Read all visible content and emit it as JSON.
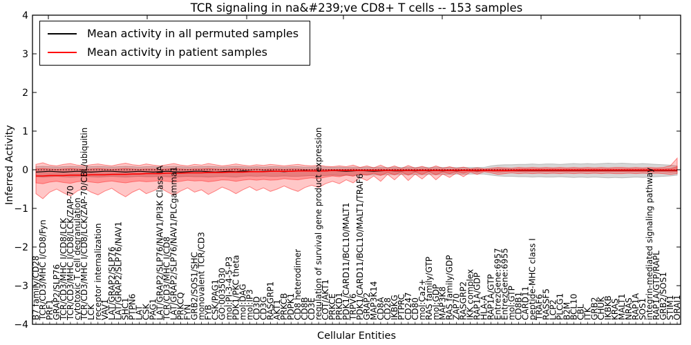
{
  "figure": {
    "title": "TCR signaling in na&#239;ve CD8+ T cells -- 153 samples",
    "xlabel": "Cellular Entities",
    "ylabel": "Inferred Activity",
    "legend": [
      {
        "label": "Mean activity in all permuted samples",
        "color": "#000000"
      },
      {
        "label": "Mean activity in patient samples",
        "color": "#ff0000"
      }
    ]
  },
  "chart_data": {
    "type": "line",
    "title": "TCR signaling in na&#239;ve CD8+ T cells -- 153 samples",
    "xlabel": "Cellular Entities",
    "ylabel": "Inferred Activity",
    "ylim": [
      -4,
      4
    ],
    "yticks": [
      4,
      3,
      2,
      1,
      0,
      -1,
      -2,
      -3,
      -4
    ],
    "grid": false,
    "legend_position": "upper left",
    "baseline": 0,
    "categories": [
      "B7 family/CD28",
      "TCR/CD3/MHC I/CD8/Fyn",
      "PRF1",
      "GRAP2/SLP76",
      "TCR/CD3/MHC I/CD8/LCK",
      "TCR/CD3/MHC I/CD8/LCK/ZAP-70",
      "cytotoxic T cell degranulation",
      "TCR/CD3/MHC I/CD8/LCK/ZAP-70/CBL/ubiquitin",
      "LCK",
      "receptor internalization",
      "VAV1",
      "LAT/GRAP2/SLP76",
      "LAT/GRAP2/SLP76/NAV1",
      "SHC1",
      "PTPN6",
      "LAT",
      "CSK",
      "PAG1",
      "LAT/GRAP2/SLP76/NAV1/PI3K Class IA",
      "TCR/CD3/MHC I/CD8",
      "LAT/GRAP2/SLP76/NAV1/PLCgamma1",
      "PRKCQ",
      "FYN",
      "GRB2/SOS1/SHC",
      "monovalent TCR/CD3",
      "FYB",
      "CSK/PAG1",
      "GO:0035030",
      "mol:PI-3-4-5-P3",
      "PDK1/PKC theta",
      "mol:DAG",
      "mol:IP3",
      "CD3D",
      "CD3G",
      "RASGRP1",
      "AKT1",
      "PRKCB",
      "PDPK1",
      "CD8 heterodimer",
      "CD8B",
      "CD3E",
      "regulation of survival gene product expression",
      "COT/AKT1",
      "PRKCE",
      "PRKD1",
      "PDK1/CARD11/BCL10/MALT1",
      "TRPV6",
      "PDK1/CARD11/BCL10/MALT1/TRAF6",
      "GRAP2",
      "MAP3K14",
      "CD8A",
      "CD28",
      "IKBKG",
      "PTPRC",
      "CD247",
      "CD80",
      "mol:Ca2+",
      "RAS family/GTP",
      "mol:GDP",
      "MAP3K8",
      "RAS family/GDP",
      "ZAP70",
      "RASGRP2",
      "IKK complex",
      "RAP1A/GDP",
      "HLA-A",
      "RAP1A/GTP",
      "EntrezGene:6957",
      "EntrezGene:6955",
      "mol:GTP",
      "CD8B1",
      "CARD11",
      "peptide-MHC class I",
      "TRAF6",
      "RASSF5",
      "LCP2",
      "PLCG1",
      "B2M",
      "BCL10",
      "CBL",
      "ITK",
      "GRB2",
      "CHUK",
      "IKBKB",
      "KRAS",
      "MALT1",
      "NRAS",
      "RAP1A",
      "SOS1",
      "integrin-mediated signaling pathway",
      "RAP1A/GTP/RAPL",
      "GRB2/SOS1",
      "STIM1",
      "ORAI1"
    ],
    "series": [
      {
        "name": "Mean activity in all permuted samples",
        "color": "#000000",
        "style": "solid",
        "values": [
          -0.06,
          -0.05,
          -0.04,
          -0.05,
          -0.06,
          -0.05,
          -0.04,
          -0.05,
          -0.06,
          -0.05,
          -0.04,
          -0.04,
          -0.05,
          -0.06,
          -0.05,
          -0.04,
          -0.05,
          -0.06,
          -0.05,
          -0.04,
          -0.05,
          -0.06,
          -0.05,
          -0.04,
          -0.04,
          -0.05,
          -0.06,
          -0.05,
          -0.04,
          -0.05,
          -0.03,
          -0.04,
          -0.05,
          -0.04,
          -0.03,
          -0.04,
          -0.05,
          -0.04,
          -0.03,
          -0.02,
          -0.03,
          -0.04,
          -0.03,
          -0.02,
          -0.03,
          -0.04,
          -0.03,
          -0.02,
          -0.03,
          -0.04,
          -0.03,
          -0.02,
          -0.03,
          -0.03,
          -0.02,
          -0.03,
          -0.02,
          -0.03,
          -0.02,
          -0.03,
          -0.02,
          -0.03,
          -0.02,
          -0.02,
          -0.03,
          -0.02,
          -0.02,
          -0.02,
          -0.02,
          -0.02,
          -0.02,
          -0.02,
          -0.02,
          -0.02,
          -0.02,
          -0.02,
          -0.02,
          -0.02,
          -0.02,
          -0.02,
          -0.02,
          -0.02,
          -0.02,
          -0.02,
          -0.02,
          -0.02,
          -0.02,
          -0.02,
          -0.02,
          -0.02,
          -0.02,
          -0.02,
          -0.02,
          -0.02
        ]
      },
      {
        "name": "Mean activity in patient samples",
        "color": "#ff0000",
        "style": "solid",
        "values": [
          -0.16,
          -0.16,
          -0.15,
          -0.15,
          -0.15,
          -0.14,
          -0.14,
          -0.14,
          -0.13,
          -0.13,
          -0.13,
          -0.12,
          -0.12,
          -0.12,
          -0.11,
          -0.11,
          -0.1,
          -0.1,
          -0.1,
          -0.09,
          -0.09,
          -0.09,
          -0.08,
          -0.08,
          -0.08,
          -0.07,
          -0.07,
          -0.07,
          -0.06,
          -0.06,
          -0.06,
          -0.05,
          -0.05,
          -0.05,
          -0.04,
          -0.04,
          -0.04,
          -0.04,
          -0.03,
          -0.03,
          -0.03,
          -0.03,
          -0.03,
          -0.02,
          -0.02,
          -0.02,
          -0.02,
          -0.02,
          -0.02,
          -0.02,
          -0.02,
          -0.02,
          -0.02,
          -0.02,
          -0.02,
          -0.02,
          -0.02,
          -0.02,
          -0.02,
          -0.02,
          -0.02,
          -0.02,
          -0.02,
          -0.02,
          -0.02,
          -0.02,
          -0.02,
          -0.02,
          -0.02,
          -0.02,
          -0.01,
          -0.01,
          -0.01,
          -0.01,
          -0.01,
          -0.01,
          -0.01,
          -0.01,
          -0.01,
          -0.01,
          -0.01,
          -0.01,
          -0.01,
          -0.01,
          -0.01,
          -0.01,
          -0.01,
          -0.01,
          -0.01,
          -0.01,
          -0.01,
          -0.01,
          -0.01,
          -0.01
        ]
      }
    ],
    "bands": [
      {
        "name": "permuted-samples-range",
        "color": "#8c8c8c",
        "fill_opacity": 0.35,
        "edge_opacity": 0.5,
        "upper": [
          0.08,
          0.09,
          0.08,
          0.07,
          0.08,
          0.09,
          0.08,
          0.07,
          0.08,
          0.09,
          0.08,
          0.07,
          0.08,
          0.09,
          0.08,
          0.07,
          0.08,
          0.08,
          0.07,
          0.08,
          0.09,
          0.08,
          0.07,
          0.08,
          0.08,
          0.09,
          0.08,
          0.07,
          0.08,
          0.09,
          0.08,
          0.07,
          0.08,
          0.07,
          0.08,
          0.08,
          0.07,
          0.08,
          0.08,
          0.07,
          0.07,
          0.08,
          0.07,
          0.06,
          0.07,
          0.06,
          0.07,
          0.06,
          0.07,
          0.06,
          0.07,
          0.06,
          0.07,
          0.06,
          0.07,
          0.06,
          0.07,
          0.06,
          0.07,
          0.06,
          0.06,
          0.06,
          0.06,
          0.06,
          0.06,
          0.06,
          0.1,
          0.12,
          0.13,
          0.13,
          0.14,
          0.14,
          0.15,
          0.14,
          0.15,
          0.15,
          0.14,
          0.15,
          0.16,
          0.15,
          0.16,
          0.15,
          0.16,
          0.17,
          0.16,
          0.17,
          0.16,
          0.15,
          0.16,
          0.15,
          0.14,
          0.13,
          0.12,
          0.1
        ],
        "lower": [
          -0.18,
          -0.19,
          -0.18,
          -0.17,
          -0.18,
          -0.19,
          -0.18,
          -0.17,
          -0.18,
          -0.19,
          -0.18,
          -0.17,
          -0.18,
          -0.19,
          -0.18,
          -0.17,
          -0.18,
          -0.18,
          -0.17,
          -0.18,
          -0.19,
          -0.18,
          -0.17,
          -0.18,
          -0.18,
          -0.19,
          -0.18,
          -0.17,
          -0.18,
          -0.19,
          -0.17,
          -0.16,
          -0.17,
          -0.16,
          -0.17,
          -0.17,
          -0.16,
          -0.17,
          -0.17,
          -0.16,
          -0.15,
          -0.16,
          -0.15,
          -0.14,
          -0.15,
          -0.14,
          -0.15,
          -0.13,
          -0.14,
          -0.13,
          -0.14,
          -0.12,
          -0.13,
          -0.12,
          -0.13,
          -0.12,
          -0.13,
          -0.12,
          -0.13,
          -0.12,
          -0.12,
          -0.11,
          -0.12,
          -0.11,
          -0.11,
          -0.11,
          -0.14,
          -0.16,
          -0.17,
          -0.17,
          -0.18,
          -0.18,
          -0.19,
          -0.18,
          -0.19,
          -0.19,
          -0.18,
          -0.19,
          -0.2,
          -0.19,
          -0.2,
          -0.19,
          -0.2,
          -0.21,
          -0.2,
          -0.21,
          -0.2,
          -0.19,
          -0.2,
          -0.19,
          -0.18,
          -0.17,
          -0.16,
          -0.14
        ]
      },
      {
        "name": "patient-samples-range-outer",
        "color": "#ff0000",
        "fill_opacity": 0.22,
        "edge_opacity": 0.45,
        "upper": [
          0.14,
          0.18,
          0.12,
          0.1,
          0.14,
          0.16,
          0.12,
          0.1,
          0.13,
          0.15,
          0.12,
          0.1,
          0.14,
          0.17,
          0.13,
          0.11,
          0.15,
          0.12,
          0.1,
          0.13,
          0.16,
          0.12,
          0.1,
          0.14,
          0.12,
          0.16,
          0.13,
          0.1,
          0.12,
          0.15,
          0.12,
          0.1,
          0.13,
          0.11,
          0.14,
          0.12,
          0.1,
          0.12,
          0.14,
          0.11,
          0.1,
          0.12,
          0.09,
          0.08,
          0.1,
          0.08,
          0.12,
          0.06,
          0.1,
          0.05,
          0.12,
          0.04,
          0.1,
          0.03,
          0.11,
          0.04,
          0.09,
          0.03,
          0.1,
          0.04,
          0.08,
          0.03,
          0.07,
          0.02,
          0.05,
          0.02,
          0.04,
          0.06,
          0.05,
          0.04,
          0.06,
          0.05,
          0.06,
          0.05,
          0.06,
          0.05,
          0.06,
          0.05,
          0.06,
          0.05,
          0.06,
          0.05,
          0.06,
          0.05,
          0.06,
          0.06,
          0.05,
          0.06,
          0.05,
          0.06,
          0.05,
          0.06,
          0.1,
          0.3
        ],
        "lower": [
          -0.62,
          -0.75,
          -0.58,
          -0.5,
          -0.6,
          -0.68,
          -0.55,
          -0.48,
          -0.58,
          -0.65,
          -0.55,
          -0.48,
          -0.6,
          -0.7,
          -0.58,
          -0.5,
          -0.62,
          -0.55,
          -0.47,
          -0.57,
          -0.66,
          -0.55,
          -0.47,
          -0.58,
          -0.52,
          -0.64,
          -0.55,
          -0.45,
          -0.52,
          -0.62,
          -0.52,
          -0.44,
          -0.54,
          -0.47,
          -0.56,
          -0.5,
          -0.42,
          -0.5,
          -0.56,
          -0.46,
          -0.4,
          -0.46,
          -0.36,
          -0.3,
          -0.36,
          -0.26,
          -0.34,
          -0.2,
          -0.28,
          -0.16,
          -0.3,
          -0.12,
          -0.26,
          -0.1,
          -0.28,
          -0.11,
          -0.24,
          -0.09,
          -0.26,
          -0.11,
          -0.2,
          -0.08,
          -0.18,
          -0.06,
          -0.12,
          -0.05,
          -0.08,
          -0.12,
          -0.1,
          -0.08,
          -0.1,
          -0.09,
          -0.1,
          -0.09,
          -0.1,
          -0.09,
          -0.1,
          -0.09,
          -0.1,
          -0.09,
          -0.1,
          -0.09,
          -0.1,
          -0.09,
          -0.1,
          -0.1,
          -0.09,
          -0.1,
          -0.09,
          -0.1,
          -0.09,
          -0.1,
          -0.12,
          -0.1
        ]
      },
      {
        "name": "patient-samples-range-inner",
        "color": "#ff0000",
        "fill_opacity": 0.25,
        "edge_opacity": 0.4,
        "upper": [
          0.02,
          0.03,
          0.02,
          0.01,
          0.02,
          0.03,
          0.02,
          0.01,
          0.02,
          0.03,
          0.02,
          0.01,
          0.02,
          0.03,
          0.02,
          0.01,
          0.02,
          0.02,
          0.01,
          0.02,
          0.03,
          0.02,
          0.01,
          0.02,
          0.02,
          0.03,
          0.02,
          0.01,
          0.02,
          0.03,
          0.02,
          0.01,
          0.02,
          0.01,
          0.02,
          0.02,
          0.01,
          0.02,
          0.02,
          0.01,
          0.01,
          0.02,
          0.01,
          0.01,
          0.01,
          0.01,
          0.02,
          0.01,
          0.01,
          0.01,
          0.02,
          0.01,
          0.02,
          0.01,
          0.02,
          0.01,
          0.02,
          0.01,
          0.02,
          0.01,
          0.01,
          0.01,
          0.01,
          0.01,
          0.01,
          0.01,
          0.01,
          0.02,
          0.02,
          0.01,
          0.02,
          0.02,
          0.02,
          0.02,
          0.02,
          0.02,
          0.02,
          0.02,
          0.02,
          0.02,
          0.02,
          0.02,
          0.02,
          0.02,
          0.02,
          0.02,
          0.02,
          0.02,
          0.02,
          0.02,
          0.02,
          0.02,
          0.03,
          0.08
        ],
        "lower": [
          -0.34,
          -0.36,
          -0.32,
          -0.3,
          -0.33,
          -0.35,
          -0.31,
          -0.29,
          -0.32,
          -0.34,
          -0.31,
          -0.29,
          -0.32,
          -0.34,
          -0.31,
          -0.29,
          -0.31,
          -0.3,
          -0.28,
          -0.3,
          -0.32,
          -0.3,
          -0.27,
          -0.29,
          -0.28,
          -0.31,
          -0.29,
          -0.26,
          -0.27,
          -0.3,
          -0.27,
          -0.25,
          -0.27,
          -0.25,
          -0.27,
          -0.26,
          -0.23,
          -0.25,
          -0.26,
          -0.23,
          -0.21,
          -0.23,
          -0.19,
          -0.16,
          -0.18,
          -0.14,
          -0.17,
          -0.11,
          -0.14,
          -0.09,
          -0.15,
          -0.07,
          -0.13,
          -0.06,
          -0.14,
          -0.06,
          -0.12,
          -0.05,
          -0.13,
          -0.06,
          -0.1,
          -0.05,
          -0.09,
          -0.04,
          -0.06,
          -0.03,
          -0.04,
          -0.06,
          -0.05,
          -0.04,
          -0.05,
          -0.05,
          -0.05,
          -0.05,
          -0.05,
          -0.05,
          -0.05,
          -0.05,
          -0.05,
          -0.05,
          -0.05,
          -0.05,
          -0.05,
          -0.05,
          -0.05,
          -0.05,
          -0.05,
          -0.05,
          -0.05,
          -0.05,
          -0.05,
          -0.05,
          -0.06,
          -0.05
        ]
      }
    ]
  }
}
